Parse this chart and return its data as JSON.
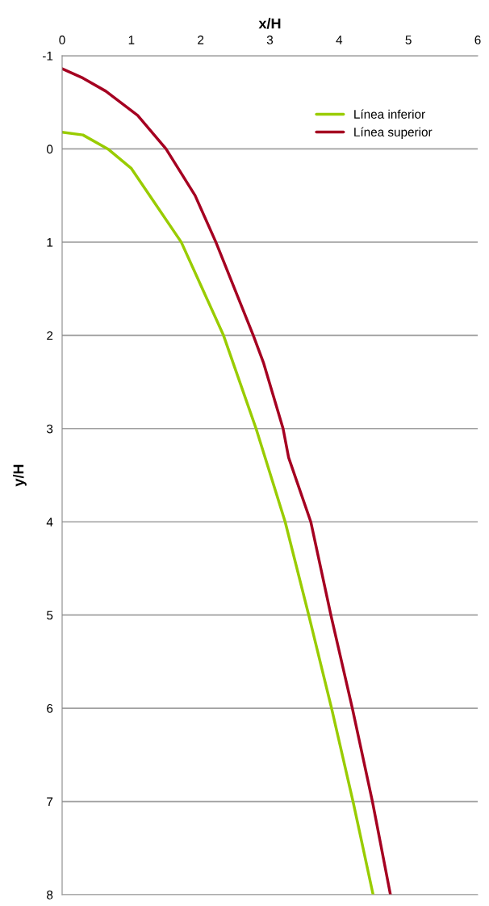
{
  "chart_data": {
    "type": "line",
    "xlabel": "x/H",
    "ylabel": "y/H",
    "xlim": [
      0,
      6
    ],
    "xticks": [
      0,
      1,
      2,
      3,
      4,
      5,
      6
    ],
    "ylim": [
      8,
      -1
    ],
    "yticks": [
      -1,
      0,
      1,
      2,
      3,
      4,
      5,
      6,
      7,
      8
    ],
    "grid": "y",
    "legend": "top right",
    "marker": "none",
    "line_style": "solid",
    "series": [
      {
        "name": "Línea inferior",
        "color": "#99cc00",
        "x": [
          0,
          0.3,
          0.66,
          1.0,
          1.72,
          2.33,
          2.8,
          3.22,
          3.56,
          3.89,
          4.2,
          4.49
        ],
        "values": [
          -0.18,
          -0.15,
          0,
          0.21,
          1,
          2,
          3,
          4,
          5,
          6,
          7,
          8
        ]
      },
      {
        "name": "Línea superior",
        "color": "#a50021",
        "x": [
          0,
          0.3,
          0.63,
          1.09,
          1.5,
          1.92,
          2.22,
          2.76,
          2.91,
          3.19,
          3.27,
          3.59,
          3.88,
          4.19,
          4.48,
          4.74
        ],
        "values": [
          -0.86,
          -0.76,
          -0.62,
          -0.36,
          0,
          0.5,
          1,
          2,
          2.3,
          3,
          3.31,
          4,
          5,
          6,
          7,
          8
        ]
      }
    ]
  }
}
